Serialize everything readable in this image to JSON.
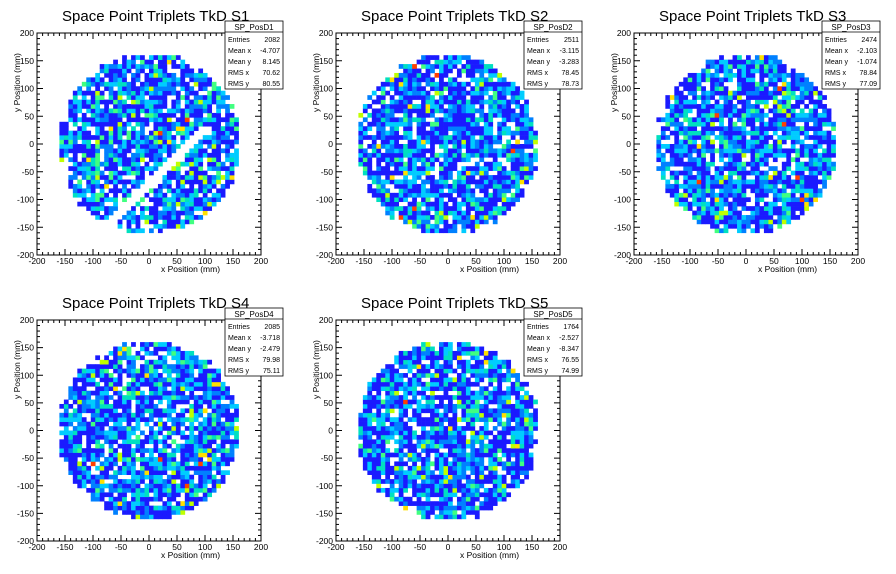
{
  "chart_data": [
    {
      "type": "heatmap",
      "title": "Space Point Triplets TkD S1",
      "xlabel": "x Position (mm)",
      "ylabel": "y Position (mm)",
      "xlim": [
        -200,
        200
      ],
      "ylim": [
        -200,
        200
      ],
      "xticks": [
        "-200",
        "-150",
        "-100",
        "-50",
        "0",
        "50",
        "100",
        "150",
        "200"
      ],
      "yticks": [
        "-200",
        "-150",
        "-100",
        "-50",
        "0",
        "50",
        "100",
        "150",
        "200"
      ],
      "stats": {
        "name": "SP_PosD1",
        "rows": [
          {
            "label": "Entries",
            "value": "2082"
          },
          {
            "label": "Mean x",
            "value": "-4.707"
          },
          {
            "label": "Mean y",
            "value": "8.145"
          },
          {
            "label": "RMS x",
            "value": "70.62"
          },
          {
            "label": "RMS y",
            "value": "80.55"
          }
        ]
      },
      "region": {
        "shape": "disk",
        "radius": 160,
        "gap": "diagonal lower-right"
      },
      "colormap": [
        "#1a1aff",
        "#0080ff",
        "#00ccff",
        "#00e0c0",
        "#40ff80",
        "#c0ff00",
        "#ffe000",
        "#ff4000"
      ]
    },
    {
      "type": "heatmap",
      "title": "Space Point Triplets TkD S2",
      "xlabel": "x Position (mm)",
      "ylabel": "y Position (mm)",
      "xlim": [
        -200,
        200
      ],
      "ylim": [
        -200,
        200
      ],
      "xticks": [
        "-200",
        "-150",
        "-100",
        "-50",
        "0",
        "50",
        "100",
        "150",
        "200"
      ],
      "yticks": [
        "-200",
        "-150",
        "-100",
        "-50",
        "0",
        "50",
        "100",
        "150",
        "200"
      ],
      "stats": {
        "name": "SP_PosD2",
        "rows": [
          {
            "label": "Entries",
            "value": "2511"
          },
          {
            "label": "Mean x",
            "value": "-3.115"
          },
          {
            "label": "Mean y",
            "value": "-3.283"
          },
          {
            "label": "RMS x",
            "value": "78.45"
          },
          {
            "label": "RMS y",
            "value": "78.73"
          }
        ]
      },
      "region": {
        "shape": "disk",
        "radius": 160
      },
      "colormap": [
        "#1a1aff",
        "#0080ff",
        "#00ccff",
        "#00e0c0",
        "#40ff80",
        "#c0ff00",
        "#ffe000",
        "#ff4000"
      ]
    },
    {
      "type": "heatmap",
      "title": "Space Point Triplets TkD S3",
      "xlabel": "x Position (mm)",
      "ylabel": "y Position (mm)",
      "xlim": [
        -200,
        200
      ],
      "ylim": [
        -200,
        200
      ],
      "xticks": [
        "-200",
        "-150",
        "-100",
        "-50",
        "0",
        "50",
        "100",
        "150",
        "200"
      ],
      "yticks": [
        "-200",
        "-150",
        "-100",
        "-50",
        "0",
        "50",
        "100",
        "150",
        "200"
      ],
      "stats": {
        "name": "SP_PosD3",
        "rows": [
          {
            "label": "Entries",
            "value": "2474"
          },
          {
            "label": "Mean x",
            "value": "-2.103"
          },
          {
            "label": "Mean y",
            "value": "-1.074"
          },
          {
            "label": "RMS x",
            "value": "78.84"
          },
          {
            "label": "RMS y",
            "value": "77.09"
          }
        ]
      },
      "region": {
        "shape": "disk",
        "radius": 160
      },
      "colormap": [
        "#1a1aff",
        "#0080ff",
        "#00ccff",
        "#00e0c0",
        "#40ff80",
        "#c0ff00",
        "#ffe000",
        "#ff4000"
      ]
    },
    {
      "type": "heatmap",
      "title": "Space Point Triplets TkD S4",
      "xlabel": "x Position (mm)",
      "ylabel": "y Position (mm)",
      "xlim": [
        -200,
        200
      ],
      "ylim": [
        -200,
        200
      ],
      "xticks": [
        "-200",
        "-150",
        "-100",
        "-50",
        "0",
        "50",
        "100",
        "150",
        "200"
      ],
      "yticks": [
        "-200",
        "-150",
        "-100",
        "-50",
        "0",
        "50",
        "100",
        "150",
        "200"
      ],
      "stats": {
        "name": "SP_PosD4",
        "rows": [
          {
            "label": "Entries",
            "value": "2085"
          },
          {
            "label": "Mean x",
            "value": "-3.718"
          },
          {
            "label": "Mean y",
            "value": "-2.479"
          },
          {
            "label": "RMS x",
            "value": "79.98"
          },
          {
            "label": "RMS y",
            "value": "75.11"
          }
        ]
      },
      "region": {
        "shape": "disk",
        "radius": 160
      },
      "colormap": [
        "#1a1aff",
        "#0080ff",
        "#00ccff",
        "#00e0c0",
        "#40ff80",
        "#c0ff00",
        "#ffe000",
        "#ff4000"
      ]
    },
    {
      "type": "heatmap",
      "title": "Space Point Triplets TkD S5",
      "xlabel": "x Position (mm)",
      "ylabel": "y Position (mm)",
      "xlim": [
        -200,
        200
      ],
      "ylim": [
        -200,
        200
      ],
      "xticks": [
        "-200",
        "-150",
        "-100",
        "-50",
        "0",
        "50",
        "100",
        "150",
        "200"
      ],
      "yticks": [
        "-200",
        "-150",
        "-100",
        "-50",
        "0",
        "50",
        "100",
        "150",
        "200"
      ],
      "stats": {
        "name": "SP_PosD5",
        "rows": [
          {
            "label": "Entries",
            "value": "1764"
          },
          {
            "label": "Mean x",
            "value": "-2.527"
          },
          {
            "label": "Mean y",
            "value": "-8.347"
          },
          {
            "label": "RMS x",
            "value": "76.55"
          },
          {
            "label": "RMS y",
            "value": "74.99"
          }
        ]
      },
      "region": {
        "shape": "disk",
        "radius": 160
      },
      "colormap": [
        "#1a1aff",
        "#0080ff",
        "#00ccff",
        "#00e0c0",
        "#40ff80",
        "#c0ff00",
        "#ffe000",
        "#ff4000"
      ]
    }
  ]
}
